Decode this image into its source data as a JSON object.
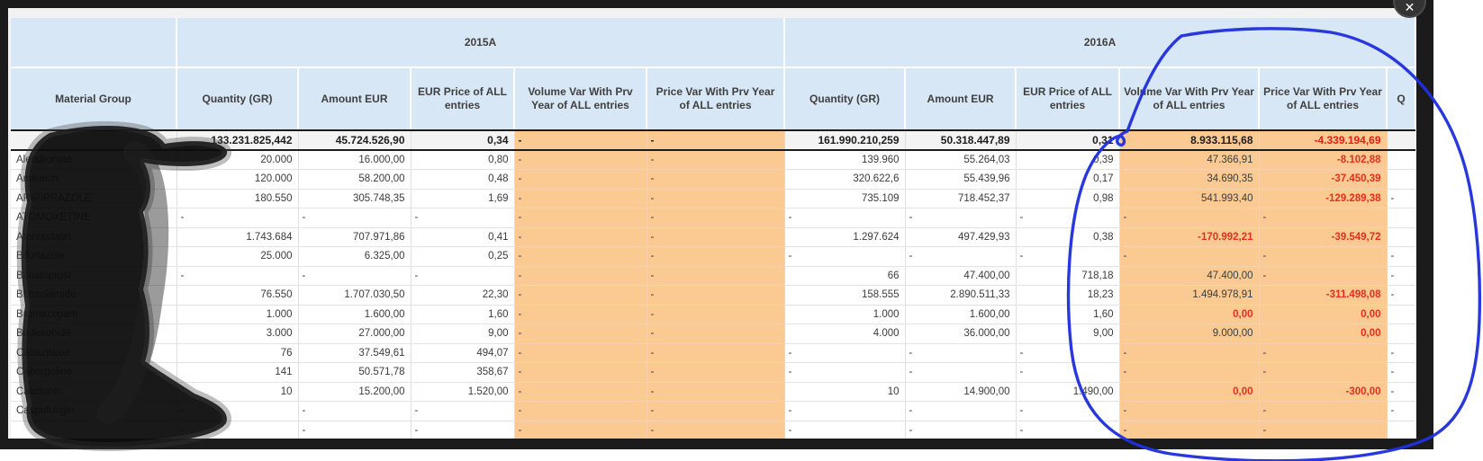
{
  "window": {
    "close_glyph": "✕"
  },
  "table": {
    "year_groups": [
      "2015A",
      "2016A"
    ],
    "columns": [
      "Material Group",
      "Quantity (GR)",
      "Amount EUR",
      "EUR Price of ALL entries",
      "Volume Var With Prv Year of ALL entries",
      "Price Var With Prv Year of ALL entries",
      "Quantity (GR)",
      "Amount EUR",
      "EUR Price of ALL entries",
      "Volume Var With Prv Year of ALL entries",
      "Price Var With Prv Year of ALL entries",
      "Q"
    ],
    "total_row": [
      "",
      "133.231.825,442",
      "45.724.526,90",
      "0,34",
      "-",
      "-",
      "161.990.210,259",
      "50.318.447,89",
      "0,31",
      "8.933.115,68",
      "-4.339.194,69",
      ""
    ],
    "rows": [
      [
        "Alendronate",
        "20.000",
        "16.000,00",
        "0,80",
        "-",
        "-",
        "139.960",
        "55.264,03",
        "0,39",
        "47.366,91",
        "-8.102,88",
        ""
      ],
      [
        "Amikacin",
        "120.000",
        "58.200,00",
        "0,48",
        "-",
        "-",
        "320.622,6",
        "55.439,96",
        "0,17",
        "34.690,35",
        "-37.450,39",
        ""
      ],
      [
        "ARIPIPRAZOLE",
        "180.550",
        "305.748,35",
        "1,69",
        "-",
        "-",
        "735.109",
        "718.452,37",
        "0,98",
        "541.993,40",
        "-129.289,38",
        "-"
      ],
      [
        "ATOMOXETINE",
        "-",
        "-",
        "-",
        "-",
        "-",
        "-",
        "-",
        "-",
        "-",
        "-",
        ""
      ],
      [
        "Atorvastatin",
        "1.743.684",
        "707.971,86",
        "0,41",
        "-",
        "-",
        "1.297.624",
        "497.429,93",
        "0,38",
        "-170.992,21",
        "-39.549,72",
        ""
      ],
      [
        "Bifonazole",
        "25.000",
        "6.325,00",
        "0,25",
        "-",
        "-",
        "-",
        "-",
        "-",
        "-",
        "-",
        "-"
      ],
      [
        "Bimatoprost",
        "-",
        "-",
        "-",
        "-",
        "-",
        "66",
        "47.400,00",
        "718,18",
        "47.400,00",
        "-",
        "-"
      ],
      [
        "Brinzolamide",
        "76.550",
        "1.707.030,50",
        "22,30",
        "-",
        "-",
        "158.555",
        "2.890.511,33",
        "18,23",
        "1.494.978,91",
        "-311.498,08",
        "-"
      ],
      [
        "Bromazepam",
        "1.000",
        "1.600,00",
        "1,60",
        "-",
        "-",
        "1.000",
        "1.600,00",
        "1,60",
        "0,00",
        "0,00",
        ""
      ],
      [
        "Budesonide",
        "3.000",
        "27.000,00",
        "9,00",
        "-",
        "-",
        "4.000",
        "36.000,00",
        "9,00",
        "9.000,00",
        "0,00",
        ""
      ],
      [
        "Cabazitaxel",
        "76",
        "37.549,61",
        "494,07",
        "-",
        "-",
        "-",
        "-",
        "-",
        "-",
        "-",
        "-"
      ],
      [
        "Cabergoline",
        "141",
        "50.571,78",
        "358,67",
        "-",
        "-",
        "-",
        "-",
        "-",
        "-",
        "-",
        "-"
      ],
      [
        "Calcitonin",
        "10",
        "15.200,00",
        "1.520,00",
        "-",
        "-",
        "10",
        "14.900,00",
        "1.490,00",
        "0,00",
        "-300,00",
        "-"
      ],
      [
        "Caspofungin",
        "-",
        "-",
        "-",
        "-",
        "-",
        "-",
        "-",
        "-",
        "-",
        "-",
        "-"
      ],
      [
        "",
        "-",
        "-",
        "-",
        "-",
        "-",
        "-",
        "-",
        "-",
        "-",
        "-",
        ""
      ]
    ]
  },
  "annotations": {
    "redaction_blob": "black marker scribble hiding material group names",
    "highlight_circle": "blue hand-drawn circle around 2016A Volume Var and Price Var columns"
  },
  "colors": {
    "header_blue": "#d8e7f5",
    "variance_orange": "#fbca92",
    "negative_red": "#e52e1e",
    "circle_blue": "#2030dd",
    "frame_black": "#1b1b1b"
  }
}
